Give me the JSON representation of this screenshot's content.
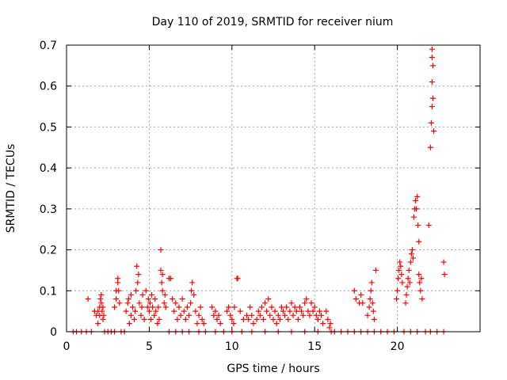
{
  "chart_data": {
    "type": "scatter",
    "title": "Day 110 of 2019, SRMTID for receiver nium",
    "xlabel": "GPS time / hours",
    "ylabel": "SRMTID / TECUs",
    "xlim": [
      0,
      25
    ],
    "ylim": [
      0,
      0.7
    ],
    "grid": true,
    "marker": "+",
    "xticks": [
      "0",
      "5",
      "10",
      "15",
      "20"
    ],
    "yticks": [
      "0",
      "0.1",
      "0.2",
      "0.3",
      "0.4",
      "0.5",
      "0.6",
      "0.7"
    ],
    "series": [
      {
        "name": "SRMTID",
        "color": "#ff0000",
        "points": [
          [
            0.4,
            0
          ],
          [
            0.6,
            0
          ],
          [
            0.9,
            0
          ],
          [
            1.2,
            0
          ],
          [
            1.5,
            0
          ],
          [
            1.3,
            0.08
          ],
          [
            1.7,
            0.05
          ],
          [
            1.8,
            0.04
          ],
          [
            1.9,
            0.05
          ],
          [
            2.0,
            0.06
          ],
          [
            2.0,
            0.04
          ],
          [
            2.05,
            0.08
          ],
          [
            2.1,
            0.07
          ],
          [
            2.1,
            0.09
          ],
          [
            2.15,
            0.05
          ],
          [
            2.2,
            0.06
          ],
          [
            2.2,
            0.03
          ],
          [
            2.25,
            0.04
          ],
          [
            1.9,
            0.02
          ],
          [
            2.3,
            0
          ],
          [
            2.5,
            0
          ],
          [
            2.7,
            0
          ],
          [
            2.9,
            0
          ],
          [
            2.9,
            0.06
          ],
          [
            3.0,
            0.08
          ],
          [
            3.0,
            0.1
          ],
          [
            3.1,
            0.12
          ],
          [
            3.1,
            0.13
          ],
          [
            3.15,
            0.1
          ],
          [
            3.2,
            0.07
          ],
          [
            3.3,
            0
          ],
          [
            3.5,
            0
          ],
          [
            3.6,
            0.05
          ],
          [
            3.7,
            0.07
          ],
          [
            3.75,
            0.08
          ],
          [
            3.8,
            0.02
          ],
          [
            3.9,
            0.04
          ],
          [
            3.9,
            0.09
          ],
          [
            4.0,
            0.06
          ],
          [
            4.1,
            0.03
          ],
          [
            4.15,
            0.05
          ],
          [
            4.2,
            0.1
          ],
          [
            4.25,
            0.16
          ],
          [
            4.3,
            0.12
          ],
          [
            4.35,
            0.14
          ],
          [
            4.4,
            0.07
          ],
          [
            4.5,
            0.04
          ],
          [
            4.55,
            0.06
          ],
          [
            4.6,
            0.09
          ],
          [
            4.7,
            0.03
          ],
          [
            4.8,
            0.1
          ],
          [
            4.9,
            0.06
          ],
          [
            4.95,
            0.08
          ],
          [
            5.0,
            0.05
          ],
          [
            5.05,
            0.07
          ],
          [
            5.1,
            0.03
          ],
          [
            5.15,
            0.09
          ],
          [
            5.2,
            0.06
          ],
          [
            5.3,
            0.04
          ],
          [
            5.35,
            0.08
          ],
          [
            5.4,
            0.05
          ],
          [
            5.5,
            0.02
          ],
          [
            5.55,
            0.06
          ],
          [
            5.6,
            0.03
          ],
          [
            5.7,
            0.15
          ],
          [
            5.7,
            0.2
          ],
          [
            5.75,
            0.12
          ],
          [
            5.8,
            0.14
          ],
          [
            5.8,
            0.1
          ],
          [
            5.9,
            0.07
          ],
          [
            5.95,
            0.09
          ],
          [
            6.0,
            0.06
          ],
          [
            6.2,
            0.13
          ],
          [
            6.3,
            0.13
          ],
          [
            6.4,
            0.08
          ],
          [
            6.5,
            0.05
          ],
          [
            6.6,
            0.07
          ],
          [
            6.7,
            0.03
          ],
          [
            6.8,
            0.06
          ],
          [
            6.9,
            0.04
          ],
          [
            7.0,
            0.08
          ],
          [
            7.1,
            0.05
          ],
          [
            7.2,
            0.03
          ],
          [
            7.3,
            0.06
          ],
          [
            7.4,
            0.04
          ],
          [
            7.5,
            0.07
          ],
          [
            7.55,
            0.1
          ],
          [
            7.6,
            0.12
          ],
          [
            7.7,
            0.09
          ],
          [
            7.8,
            0.05
          ],
          [
            7.9,
            0.02
          ],
          [
            8.0,
            0.04
          ],
          [
            8.1,
            0.06
          ],
          [
            8.2,
            0.03
          ],
          [
            8.3,
            0.02
          ],
          [
            6.2,
            0
          ],
          [
            6.6,
            0
          ],
          [
            7.0,
            0
          ],
          [
            7.4,
            0
          ],
          [
            8.0,
            0
          ],
          [
            8.4,
            0
          ],
          [
            8.8,
            0.06
          ],
          [
            8.9,
            0.04
          ],
          [
            9.0,
            0.05
          ],
          [
            9.1,
            0.03
          ],
          [
            9.2,
            0.04
          ],
          [
            9.3,
            0.02
          ],
          [
            9.0,
            0
          ],
          [
            9.5,
            0
          ],
          [
            9.7,
            0.05
          ],
          [
            9.8,
            0.06
          ],
          [
            9.9,
            0.04
          ],
          [
            10.0,
            0.03
          ],
          [
            10.1,
            0.02
          ],
          [
            10.15,
            0.06
          ],
          [
            10.3,
            0.13
          ],
          [
            10.35,
            0.13
          ],
          [
            10.5,
            0.05
          ],
          [
            10.7,
            0.03
          ],
          [
            10.9,
            0.04
          ],
          [
            11.0,
            0.03
          ],
          [
            11.1,
            0.06
          ],
          [
            11.2,
            0.04
          ],
          [
            11.3,
            0.02
          ],
          [
            10.0,
            0
          ],
          [
            10.6,
            0
          ],
          [
            11.2,
            0
          ],
          [
            11.5,
            0.03
          ],
          [
            11.6,
            0.05
          ],
          [
            11.7,
            0.04
          ],
          [
            11.8,
            0.06
          ],
          [
            11.9,
            0.03
          ],
          [
            12.0,
            0.07
          ],
          [
            12.1,
            0.05
          ],
          [
            12.2,
            0.08
          ],
          [
            12.3,
            0.04
          ],
          [
            12.4,
            0.06
          ],
          [
            12.5,
            0.03
          ],
          [
            12.6,
            0.05
          ],
          [
            12.7,
            0.02
          ],
          [
            12.8,
            0.04
          ],
          [
            12.9,
            0.03
          ],
          [
            13.0,
            0.06
          ],
          [
            13.1,
            0.05
          ],
          [
            13.2,
            0.04
          ],
          [
            13.3,
            0.06
          ],
          [
            13.4,
            0.03
          ],
          [
            13.5,
            0.05
          ],
          [
            13.6,
            0.07
          ],
          [
            13.7,
            0.04
          ],
          [
            13.8,
            0.06
          ],
          [
            13.9,
            0.05
          ],
          [
            14.0,
            0.03
          ],
          [
            14.1,
            0.06
          ],
          [
            14.2,
            0.05
          ],
          [
            14.3,
            0.04
          ],
          [
            14.4,
            0.07
          ],
          [
            14.5,
            0.08
          ],
          [
            14.6,
            0.05
          ],
          [
            14.7,
            0.04
          ],
          [
            14.8,
            0.07
          ],
          [
            14.9,
            0.05
          ],
          [
            15.0,
            0.06
          ],
          [
            15.1,
            0.04
          ],
          [
            15.2,
            0.03
          ],
          [
            15.3,
            0.05
          ],
          [
            15.4,
            0.04
          ],
          [
            15.5,
            0.02
          ],
          [
            15.7,
            0.05
          ],
          [
            15.8,
            0.03
          ],
          [
            15.9,
            0.01
          ],
          [
            15.95,
            0.02
          ],
          [
            12.0,
            0
          ],
          [
            12.8,
            0
          ],
          [
            13.6,
            0
          ],
          [
            14.4,
            0
          ],
          [
            15.2,
            0
          ],
          [
            16.0,
            0
          ],
          [
            16.2,
            0
          ],
          [
            16.6,
            0
          ],
          [
            17.0,
            0
          ],
          [
            17.4,
            0
          ],
          [
            17.8,
            0
          ],
          [
            18.2,
            0
          ],
          [
            18.6,
            0
          ],
          [
            19.0,
            0
          ],
          [
            19.4,
            0
          ],
          [
            19.8,
            0
          ],
          [
            17.4,
            0.1
          ],
          [
            17.5,
            0.08
          ],
          [
            17.7,
            0.07
          ],
          [
            17.8,
            0.09
          ],
          [
            17.9,
            0.07
          ],
          [
            18.2,
            0.04
          ],
          [
            18.3,
            0.06
          ],
          [
            18.35,
            0.08
          ],
          [
            18.4,
            0.1
          ],
          [
            18.45,
            0.12
          ],
          [
            18.5,
            0.07
          ],
          [
            18.55,
            0.05
          ],
          [
            18.6,
            0.03
          ],
          [
            18.7,
            0.15
          ],
          [
            19.95,
            0.08
          ],
          [
            20.0,
            0.1
          ],
          [
            20.05,
            0.13
          ],
          [
            20.1,
            0.15
          ],
          [
            20.15,
            0.17
          ],
          [
            20.2,
            0.16
          ],
          [
            20.25,
            0.14
          ],
          [
            20.3,
            0.12
          ],
          [
            20.5,
            0.07
          ],
          [
            20.55,
            0.09
          ],
          [
            20.6,
            0.11
          ],
          [
            20.65,
            0.13
          ],
          [
            20.7,
            0.15
          ],
          [
            20.75,
            0.12
          ],
          [
            20.8,
            0.17
          ],
          [
            20.85,
            0.19
          ],
          [
            20.9,
            0.2
          ],
          [
            20.95,
            0.18
          ],
          [
            21.0,
            0.28
          ],
          [
            21.05,
            0.3
          ],
          [
            21.1,
            0.32
          ],
          [
            21.15,
            0.3
          ],
          [
            21.2,
            0.33
          ],
          [
            21.25,
            0.26
          ],
          [
            21.3,
            0.22
          ],
          [
            21.3,
            0.14
          ],
          [
            21.35,
            0.12
          ],
          [
            21.4,
            0.1
          ],
          [
            21.45,
            0.13
          ],
          [
            21.5,
            0.08
          ],
          [
            22.0,
            0.45
          ],
          [
            22.05,
            0.51
          ],
          [
            22.1,
            0.55
          ],
          [
            22.15,
            0.57
          ],
          [
            22.2,
            0.49
          ],
          [
            22.1,
            0.61
          ],
          [
            22.15,
            0.65
          ],
          [
            22.1,
            0.67
          ],
          [
            22.1,
            0.69
          ],
          [
            21.9,
            0.26
          ],
          [
            22.8,
            0.17
          ],
          [
            22.85,
            0.14
          ],
          [
            20.4,
            0
          ],
          [
            20.8,
            0
          ],
          [
            21.2,
            0
          ],
          [
            21.7,
            0
          ],
          [
            22.0,
            0
          ],
          [
            22.4,
            0
          ],
          [
            22.8,
            0
          ]
        ]
      }
    ]
  }
}
